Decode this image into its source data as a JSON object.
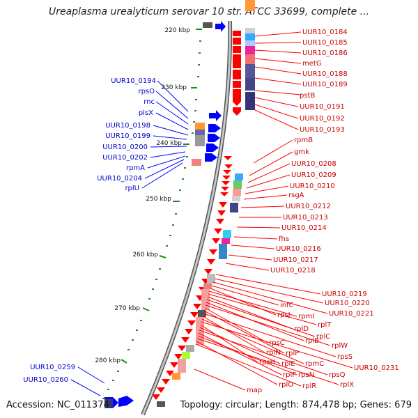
{
  "title": "Ureaplasma urealyticum serovar 10 str. ATCC 33699, complete ...",
  "footer": {
    "accession": "Accession: NC_011374",
    "summary": "Topology: circular; Length: 874,478 bp; Genes: 679"
  },
  "ticks": [
    "220 kbp",
    "230 kbp",
    "240 kbp",
    "250 kbp",
    "260 kbp",
    "270 kbp",
    "280 kbp"
  ],
  "colors": {
    "forward_gene": "#0000ff",
    "reverse_gene": "#ff0000",
    "backbone": "#888888",
    "tick_mark": "#228b22",
    "forward_label": "#0000cc",
    "reverse_label": "#cc0000"
  },
  "forward_labels": [
    "UUR10_0194",
    "rpsO",
    "rnc",
    "plsX",
    "UUR10_0198",
    "UUR10_0199",
    "UUR10_0200",
    "UUR10_0202",
    "rpmA",
    "UUR10_0204",
    "rplU",
    "UUR10_0259",
    "UUR10_0260"
  ],
  "reverse_labels_col1": [
    "UUR10_0184",
    "UUR10_0185",
    "UUR10_0186",
    "metG",
    "UUR10_0188",
    "UUR10_0189",
    "pstB",
    "UUR10_0191",
    "UUR10_0192",
    "UUR10_0193",
    "rpmB",
    "gmk",
    "UUR10_0208",
    "UUR10_0209",
    "UUR10_0210",
    "rsgA",
    "UUR10_0212",
    "UUR10_0213",
    "UUR10_0214",
    "fhs",
    "UUR10_0216",
    "UUR10_0217",
    "UUR10_0218"
  ],
  "reverse_labels_ribo": [
    "UUR10_0219",
    "UUR10_0220",
    "UUR10_0221",
    "infC",
    "rpsJ",
    "rpmI",
    "rplT",
    "rplD",
    "rplC",
    "rplB",
    "rplW",
    "rpsC",
    "rplP",
    "rpsS",
    "rplN",
    "rpmC",
    "UUR10_0231",
    "rpsH",
    "rplE",
    "rpsQ",
    "rplF",
    "rpsN",
    "rplX",
    "rplO",
    "rplR",
    "map"
  ]
}
